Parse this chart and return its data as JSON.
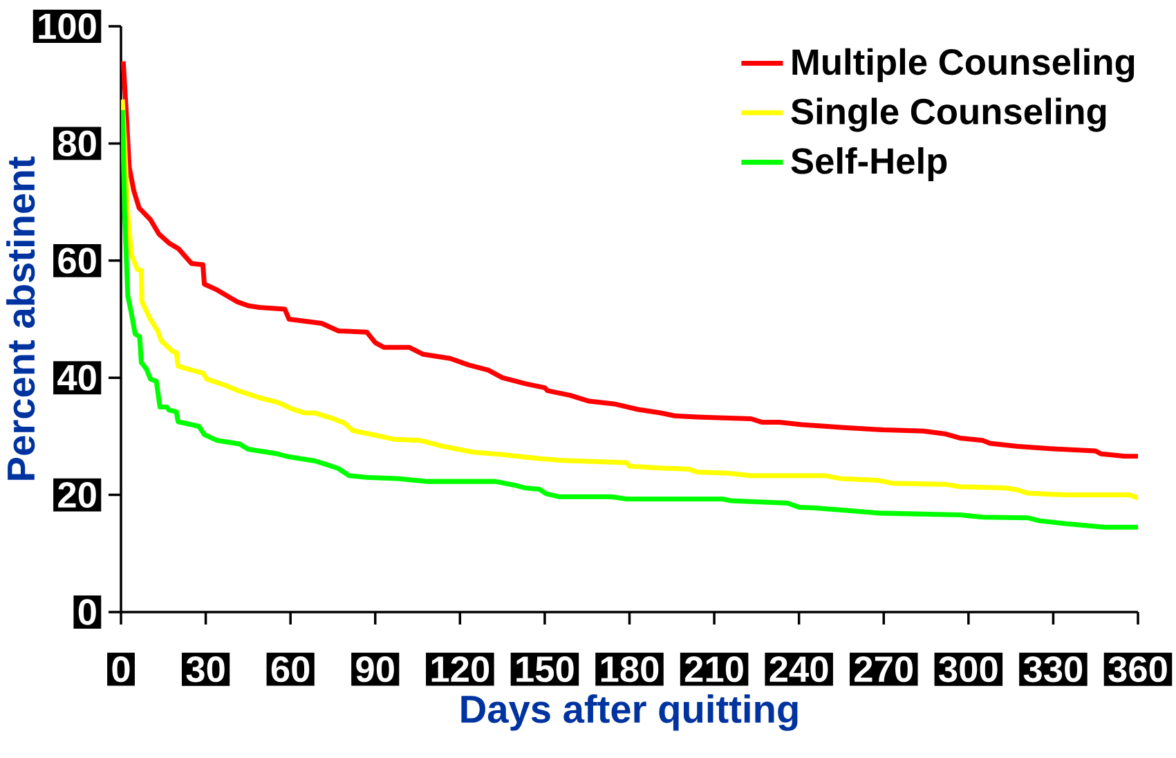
{
  "chart_data": {
    "type": "line",
    "xlabel": "Days after quitting",
    "ylabel": "Percent abstinent",
    "xlim": [
      0,
      360
    ],
    "ylim": [
      0,
      100
    ],
    "xticks": [
      0,
      30,
      60,
      90,
      120,
      150,
      180,
      210,
      240,
      270,
      300,
      330,
      360
    ],
    "yticks": [
      0,
      20,
      40,
      60,
      80,
      100
    ],
    "legend": "top right",
    "series": [
      {
        "name": "Multiple Counseling",
        "color": "#ff0000",
        "x": [
          0.8,
          1.9,
          2.9,
          4.5,
          6.4,
          10.4,
          13.5,
          17,
          20.4,
          25,
          29,
          29.5,
          34,
          41,
          45,
          49,
          58,
          59.5,
          71,
          77,
          87,
          90,
          93,
          102,
          107,
          116.5,
          123,
          130,
          135,
          143,
          150,
          151,
          159,
          165.7,
          175,
          183,
          191,
          196,
          204,
          223,
          227,
          233,
          241,
          256,
          270,
          284,
          292,
          297,
          305,
          307.6,
          317,
          329,
          345,
          347,
          355.5,
          360
        ],
        "values": [
          94,
          85,
          76,
          72,
          69,
          67,
          64.5,
          63,
          62,
          59.5,
          59.3,
          56,
          55,
          53,
          52.3,
          52,
          51.7,
          50,
          49.3,
          48,
          47.8,
          46,
          45.2,
          45.2,
          44,
          43.3,
          42.2,
          41.3,
          40,
          39,
          38.3,
          37.8,
          37,
          36,
          35.5,
          34.6,
          34,
          33.5,
          33.3,
          33,
          32.4,
          32.4,
          32,
          31.5,
          31.1,
          30.9,
          30.4,
          29.7,
          29.3,
          28.8,
          28.3,
          27.9,
          27.5,
          27,
          26.6,
          26.6
        ]
      },
      {
        "name": "Single Counseling",
        "color": "#ffff00",
        "x": [
          0.5,
          1.3,
          2.4,
          3.7,
          5.8,
          7.2,
          7.4,
          10.4,
          13,
          14.3,
          18.3,
          19.6,
          20.2,
          25,
          29,
          30.3,
          37,
          42,
          49,
          55.5,
          61,
          65,
          68.7,
          74,
          79,
          82,
          90,
          96.6,
          106,
          114,
          124.5,
          135,
          148,
          156,
          167,
          179,
          180,
          191,
          201,
          204,
          215,
          223,
          249,
          254.6,
          268,
          273,
          292,
          297,
          313,
          317,
          321,
          334,
          357,
          360
        ],
        "values": [
          87.5,
          80,
          68,
          61,
          58.5,
          58.3,
          53,
          50,
          48,
          46.3,
          44.5,
          44.3,
          42,
          41.3,
          40.8,
          39.8,
          38.7,
          37.7,
          36.6,
          35.8,
          34.6,
          34,
          34,
          33.2,
          32.3,
          31,
          30.2,
          29.5,
          29.3,
          28.3,
          27.3,
          26.9,
          26.2,
          25.9,
          25.7,
          25.5,
          24.9,
          24.6,
          24.4,
          23.9,
          23.7,
          23.3,
          23.3,
          22.8,
          22.5,
          22,
          21.8,
          21.4,
          21.2,
          20.9,
          20.3,
          20,
          20,
          19.5
        ]
      },
      {
        "name": "Self-Help",
        "color": "#00ff00",
        "x": [
          0.5,
          1.3,
          2.4,
          3.7,
          5,
          6.6,
          7.2,
          9,
          10.4,
          12.5,
          13.8,
          16.2,
          17,
          19.6,
          20.2,
          25,
          27.6,
          29.5,
          34,
          42,
          45,
          55.5,
          59.5,
          68.7,
          72.7,
          77,
          80.7,
          87,
          98,
          108.6,
          132.5,
          139,
          143,
          148,
          150.5,
          155,
          173.6,
          179,
          213,
          216,
          236,
          240,
          245,
          256,
          268,
          297,
          305,
          321,
          325,
          334,
          348,
          360
        ],
        "values": [
          85.7,
          68,
          54,
          51,
          47.5,
          47,
          42.6,
          41.5,
          39.8,
          39.4,
          35,
          35,
          34.5,
          34.2,
          32.5,
          32,
          31.7,
          30.3,
          29.3,
          28.7,
          27.8,
          27,
          26.5,
          25.8,
          25.2,
          24.5,
          23.3,
          23,
          22.8,
          22.3,
          22.3,
          21.7,
          21.2,
          21,
          20.2,
          19.7,
          19.7,
          19.3,
          19.3,
          19,
          18.6,
          17.9,
          17.8,
          17.4,
          16.9,
          16.6,
          16.2,
          16.1,
          15.6,
          15.1,
          14.5,
          14.5
        ]
      }
    ]
  }
}
